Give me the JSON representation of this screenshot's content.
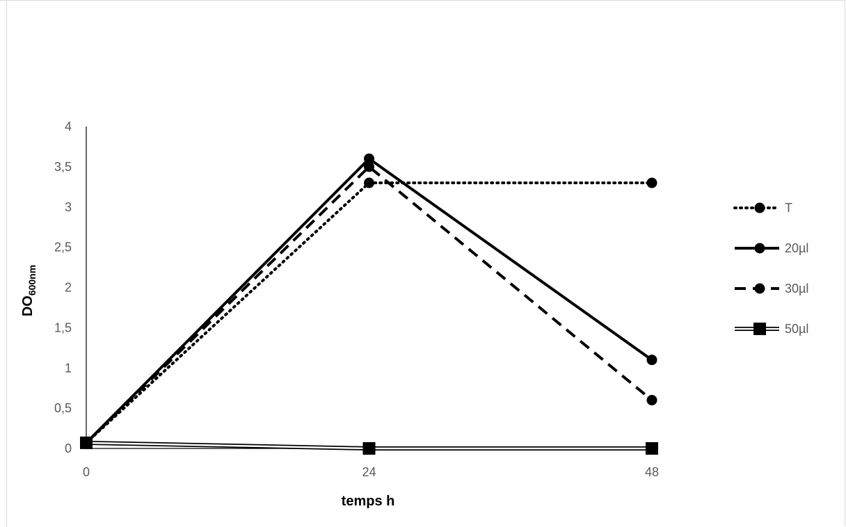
{
  "chart_data": {
    "type": "line",
    "x": [
      0,
      24,
      48
    ],
    "x_tick_labels": [
      "0",
      "24",
      "48"
    ],
    "xlabel": "temps h",
    "ylabel": {
      "main": "DO",
      "subscript": "600nm"
    },
    "ylim": [
      0,
      4
    ],
    "y_tick_labels": [
      "0",
      "0,5",
      "1",
      "1,5",
      "2",
      "2,5",
      "3",
      "3,5",
      "4"
    ],
    "y_ticks": [
      0,
      0.5,
      1,
      1.5,
      2,
      2.5,
      3,
      3.5,
      4
    ],
    "grid": false,
    "legend_position": "right",
    "series": [
      {
        "name": "T",
        "values": [
          0.07,
          3.3,
          3.3
        ],
        "line_style": "dotted",
        "marker": "circle",
        "color": "#000000"
      },
      {
        "name": "20µl",
        "values": [
          0.07,
          3.6,
          1.1
        ],
        "line_style": "solid",
        "marker": "circle",
        "color": "#000000"
      },
      {
        "name": "30µl",
        "values": [
          0.07,
          3.5,
          0.6
        ],
        "line_style": "dashed",
        "marker": "circle",
        "color": "#000000"
      },
      {
        "name": "50µl",
        "values": [
          0.07,
          0.0,
          0.0
        ],
        "line_style": "double",
        "marker": "square",
        "color": "#000000"
      }
    ]
  }
}
